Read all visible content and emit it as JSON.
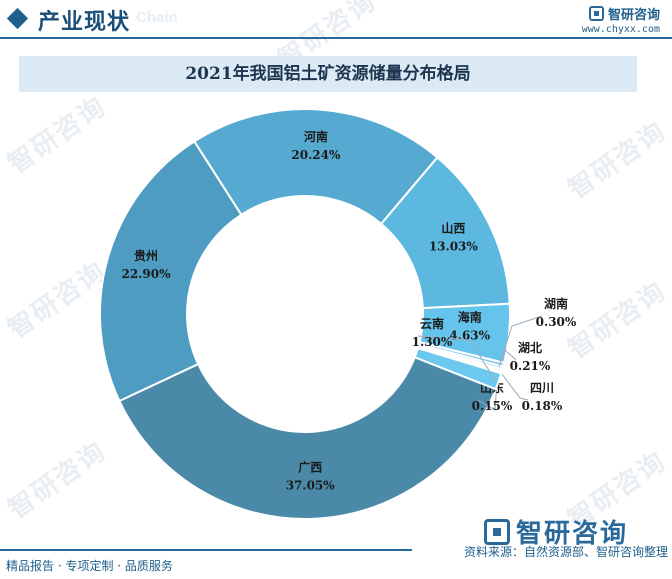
{
  "header": {
    "title": "产业现状",
    "ghost_text": "Chain",
    "brand_name": "智研咨询",
    "brand_url": "www.chyxx.com"
  },
  "watermark": {
    "text": "智研咨询"
  },
  "chart_data": {
    "type": "pie",
    "donut": true,
    "title": "2021年我国铝土矿资源储量分布格局",
    "unit": "%",
    "slices": [
      {
        "label": "广西",
        "value": 37.05,
        "display": "37.05%",
        "color": "#4a8aa8"
      },
      {
        "label": "贵州",
        "value": 22.9,
        "display": "22.90%",
        "color": "#4f9cc2"
      },
      {
        "label": "河南",
        "value": 20.24,
        "display": "20.24%",
        "color": "#56aad2"
      },
      {
        "label": "山西",
        "value": 13.03,
        "display": "13.03%",
        "color": "#5db8e0"
      },
      {
        "label": "海南",
        "value": 4.63,
        "display": "4.63%",
        "color": "#66c4ec"
      },
      {
        "label": "湖南",
        "value": 0.3,
        "display": "0.30%",
        "color": "#7acdf0"
      },
      {
        "label": "湖北",
        "value": 0.21,
        "display": "0.21%",
        "color": "#8ed5f2"
      },
      {
        "label": "四川",
        "value": 0.18,
        "display": "0.18%",
        "color": "#a2dcf4"
      },
      {
        "label": "山东",
        "value": 0.15,
        "display": "0.15%",
        "color": "#b6e4f6"
      },
      {
        "label": "云南",
        "value": 1.3,
        "display": "1.30%",
        "color": "#6cc8ee"
      }
    ]
  },
  "footer": {
    "left": "精品报告 · 专项定制 · 品质服务",
    "right": "资料来源：自然资源部、智研咨询整理"
  }
}
